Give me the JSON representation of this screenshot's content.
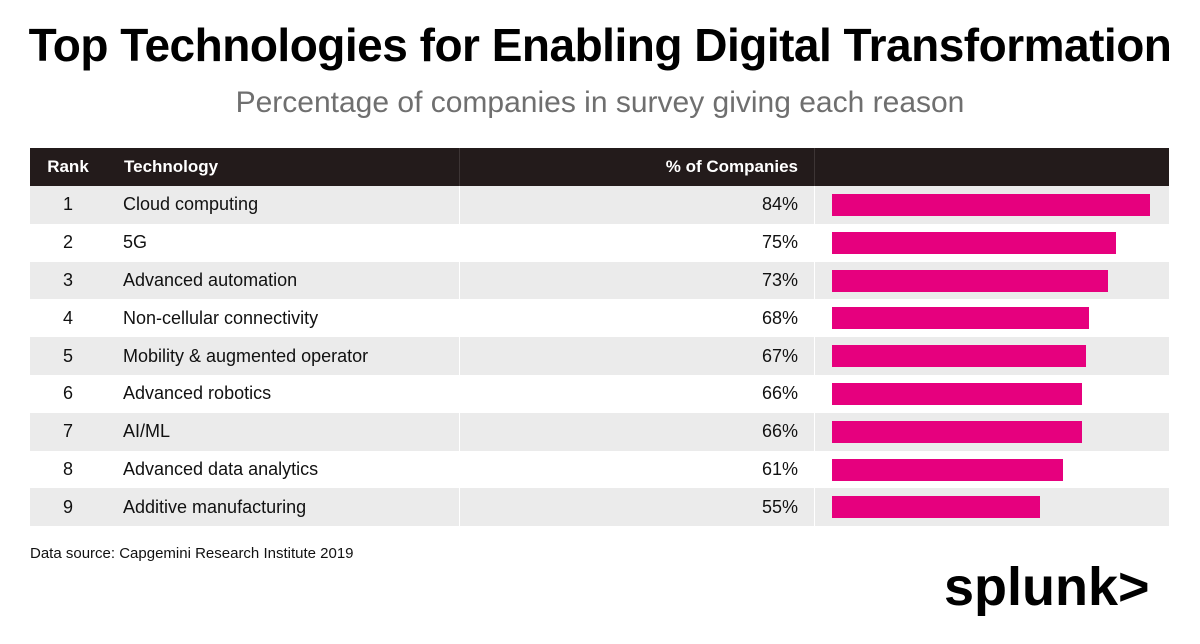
{
  "title": "Top Technologies for Enabling Digital Transformation",
  "subtitle": "Percentage of companies in survey giving each reason",
  "table": {
    "headers": {
      "rank": "Rank",
      "technology": "Technology",
      "percent": "% of Companies"
    }
  },
  "source": "Data source: Capgemini Research Institute 2019",
  "logo": {
    "text": "splunk>",
    "icon": "splunk-logo"
  },
  "colors": {
    "bar": "#e6007e",
    "header_bg": "#231b1b",
    "stripe": "#ebebeb"
  },
  "chart_data": {
    "type": "bar",
    "orientation": "horizontal",
    "title": "Top Technologies for Enabling Digital Transformation",
    "subtitle": "Percentage of companies in survey giving each reason",
    "xlim": [
      0,
      84
    ],
    "rows": [
      {
        "rank": "1",
        "technology": "Cloud computing",
        "value": 84,
        "label": "84%"
      },
      {
        "rank": "2",
        "technology": "5G",
        "value": 75,
        "label": "75%"
      },
      {
        "rank": "3",
        "technology": "Advanced automation",
        "value": 73,
        "label": "73%"
      },
      {
        "rank": "4",
        "technology": "Non-cellular connectivity",
        "value": 68,
        "label": "68%"
      },
      {
        "rank": "5",
        "technology": "Mobility & augmented operator",
        "value": 67,
        "label": "67%"
      },
      {
        "rank": "6",
        "technology": "Advanced robotics",
        "value": 66,
        "label": "66%"
      },
      {
        "rank": "7",
        "technology": "AI/ML",
        "value": 66,
        "label": "66%"
      },
      {
        "rank": "8",
        "technology": "Advanced data analytics",
        "value": 61,
        "label": "61%"
      },
      {
        "rank": "9",
        "technology": "Additive manufacturing",
        "value": 55,
        "label": "55%"
      }
    ]
  }
}
